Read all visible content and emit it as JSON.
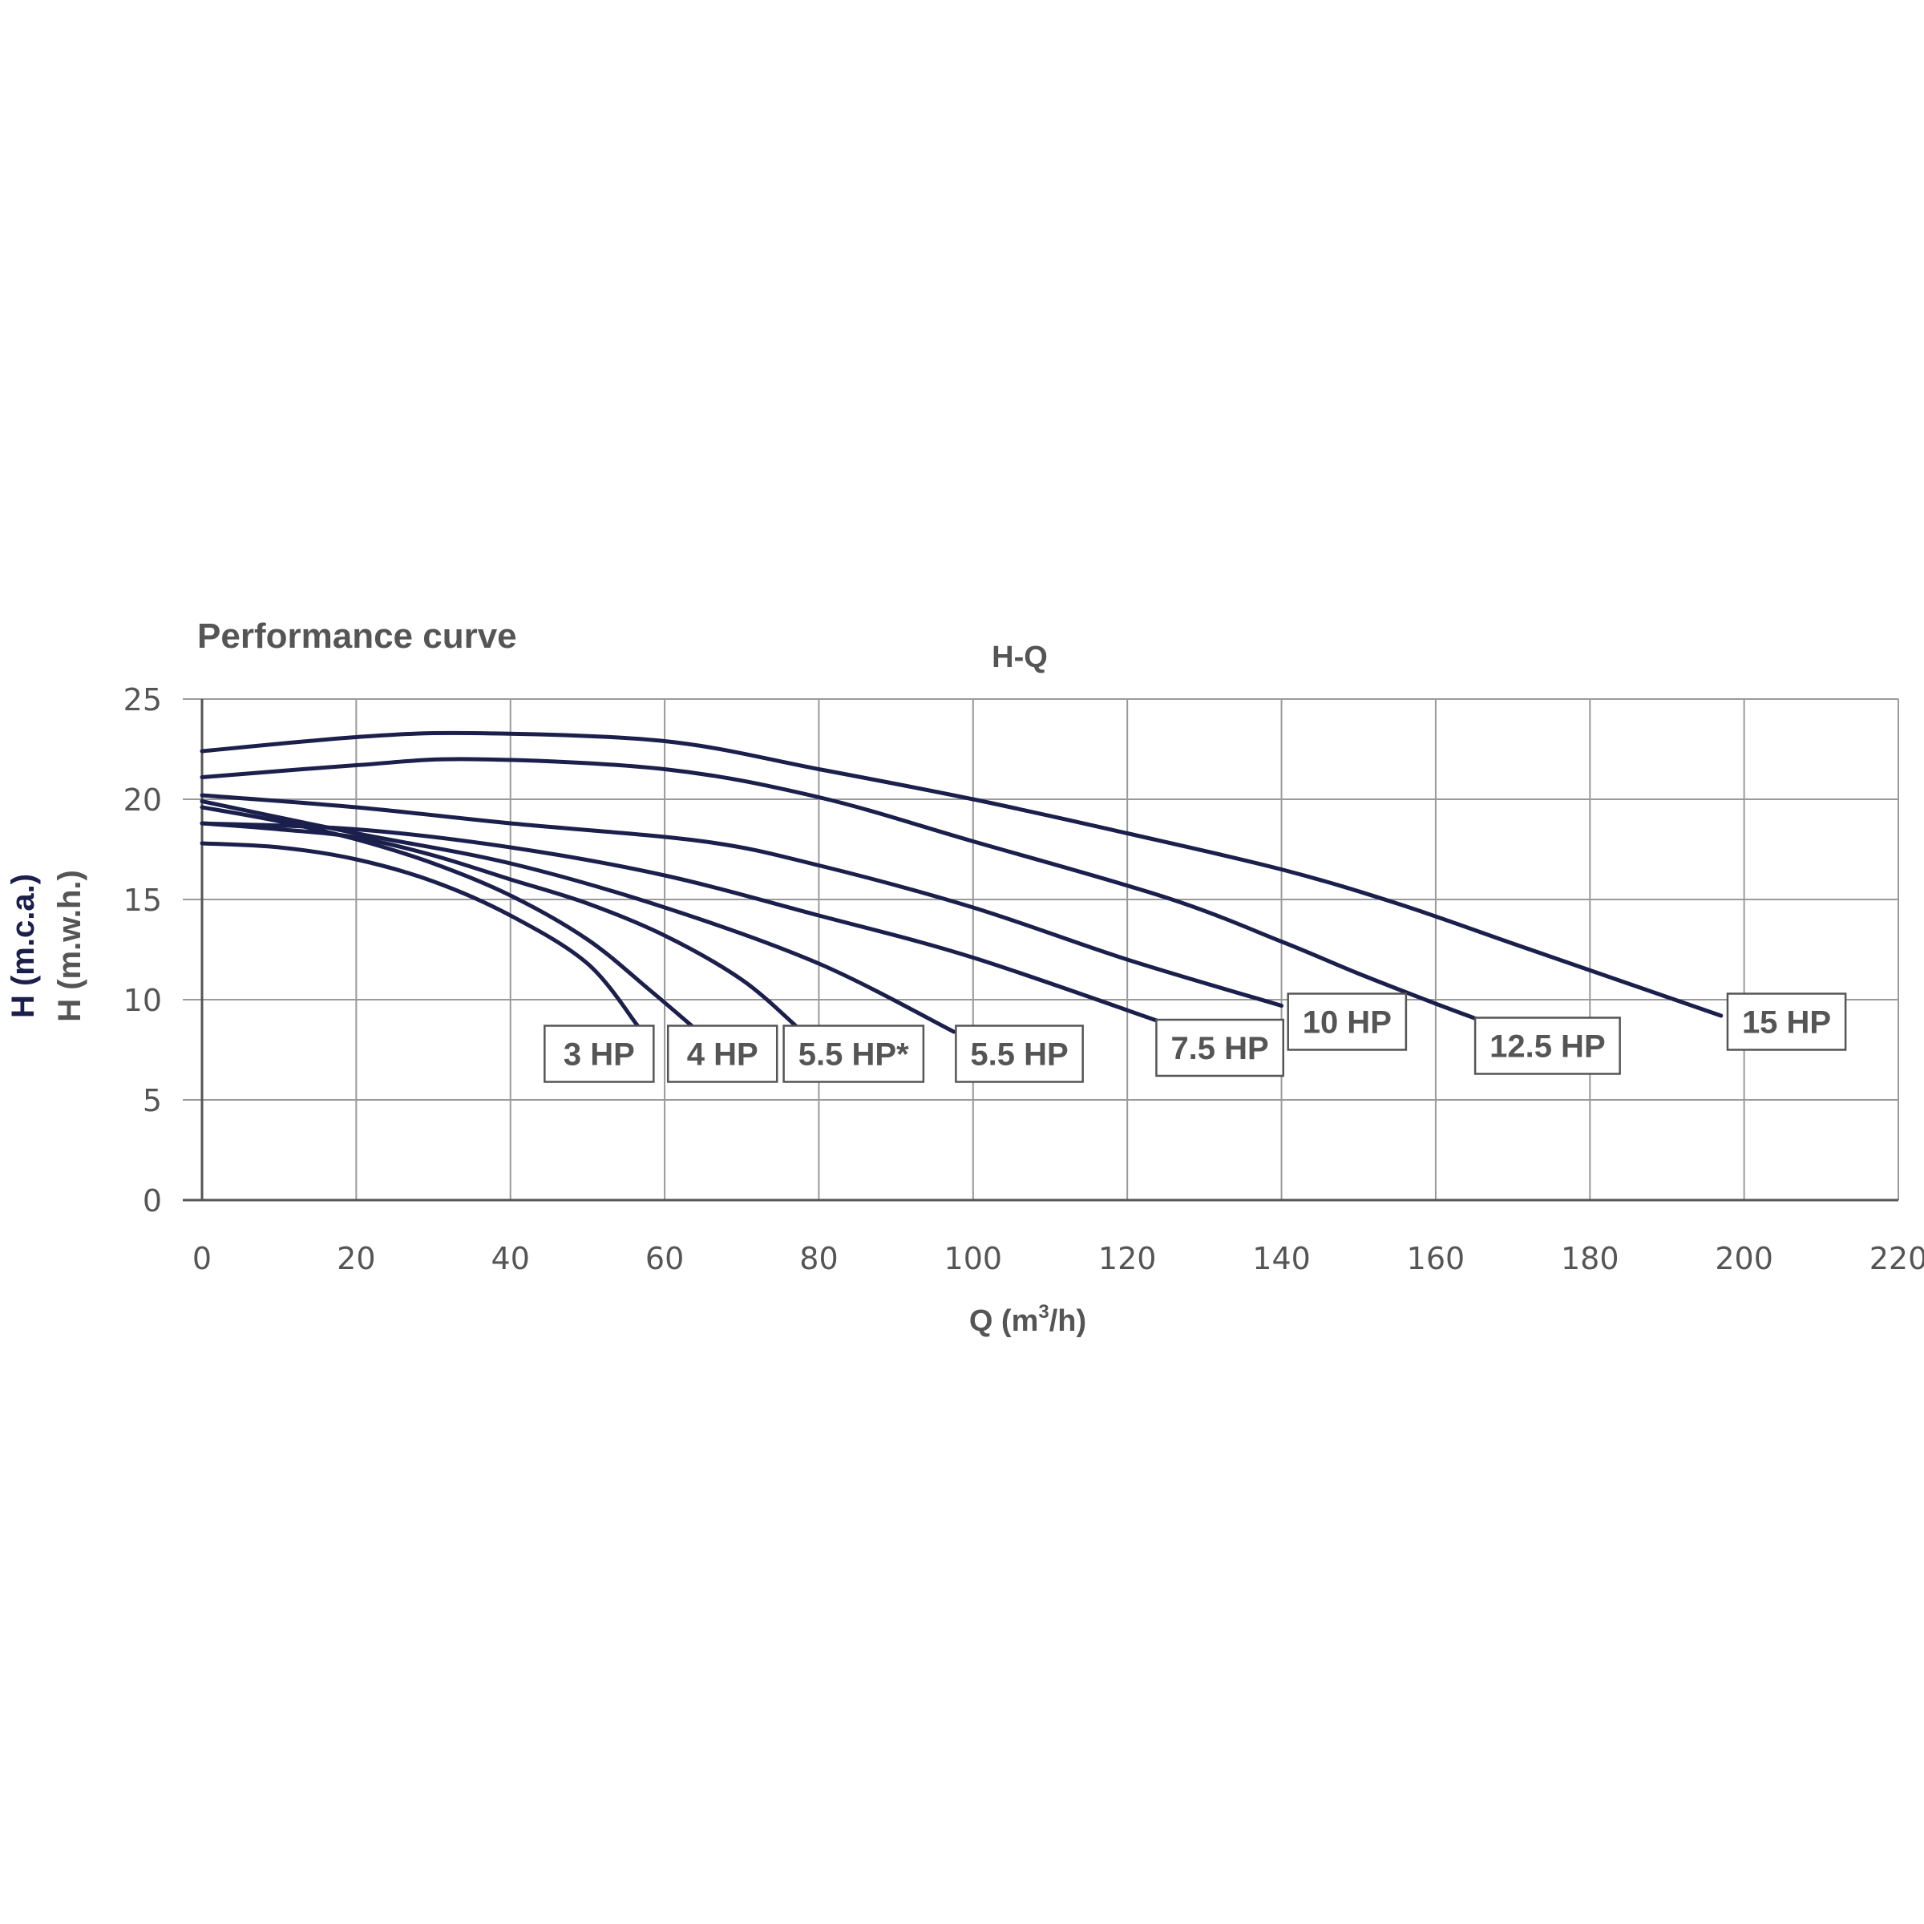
{
  "heading": "Performance curve",
  "chart_data": {
    "type": "line",
    "title": "H-Q",
    "xlabel_main": "Q (m",
    "xlabel_sup": "3",
    "xlabel_end": "/h)",
    "ylabel_primary": "H (m.c.a.)",
    "ylabel_secondary": "H (m.w.h.)",
    "xlim": [
      0,
      220
    ],
    "ylim": [
      0,
      25
    ],
    "xticks": [
      "0",
      "20",
      "40",
      "60",
      "80",
      "100",
      "120",
      "140",
      "160",
      "180",
      "200",
      "220"
    ],
    "yticks": [
      "0",
      "5",
      "10",
      "15",
      "20",
      "25"
    ],
    "grid": true,
    "line_color": "#1b1f4b",
    "series": [
      {
        "name": "3 HP",
        "label_at": [
          51.5,
          7.3
        ],
        "points": [
          [
            0,
            17.8
          ],
          [
            10,
            17.6
          ],
          [
            20,
            17
          ],
          [
            30,
            15.9
          ],
          [
            40,
            14.2
          ],
          [
            50,
            11.8
          ],
          [
            56.5,
            8.7
          ]
        ]
      },
      {
        "name": "4 HP",
        "label_at": [
          67.5,
          7.3
        ],
        "points": [
          [
            0,
            19.6
          ],
          [
            10,
            18.9
          ],
          [
            20,
            18
          ],
          [
            30,
            16.8
          ],
          [
            40,
            15.2
          ],
          [
            50,
            13
          ],
          [
            58,
            10.5
          ],
          [
            63.5,
            8.7
          ]
        ]
      },
      {
        "name": "5.5 HP*",
        "label_at": [
          84.5,
          7.3
        ],
        "points": [
          [
            0,
            18.8
          ],
          [
            10,
            18.5
          ],
          [
            20,
            18.1
          ],
          [
            30,
            17.2
          ],
          [
            40,
            16
          ],
          [
            50,
            14.8
          ],
          [
            60,
            13.2
          ],
          [
            70,
            11
          ],
          [
            77,
            8.7
          ]
        ]
      },
      {
        "name": "5.5 HP",
        "label_at": [
          106,
          7.3
        ],
        "points": [
          [
            0,
            19.9
          ],
          [
            20,
            18.3
          ],
          [
            40,
            16.8
          ],
          [
            60,
            14.6
          ],
          [
            80,
            11.8
          ],
          [
            97.5,
            8.4
          ]
        ]
      },
      {
        "name": "7.5 HP",
        "label_at": [
          132,
          7.6
        ],
        "points": [
          [
            0,
            18.8
          ],
          [
            20,
            18.5
          ],
          [
            40,
            17.6
          ],
          [
            60,
            16.2
          ],
          [
            80,
            14.2
          ],
          [
            100,
            12.1
          ],
          [
            125,
            8.8
          ]
        ]
      },
      {
        "name": "10 HP",
        "label_at": [
          148.5,
          8.9
        ],
        "points": [
          [
            0,
            20.2
          ],
          [
            20,
            19.6
          ],
          [
            40,
            18.8
          ],
          [
            65,
            17.9
          ],
          [
            80,
            16.7
          ],
          [
            100,
            14.6
          ],
          [
            120,
            12
          ],
          [
            140,
            9.7
          ]
        ]
      },
      {
        "name": "12.5 HP",
        "label_at": [
          174.5,
          7.7
        ],
        "points": [
          [
            0,
            21.1
          ],
          [
            20,
            21.7
          ],
          [
            35,
            22
          ],
          [
            60,
            21.5
          ],
          [
            80,
            20.1
          ],
          [
            100,
            17.9
          ],
          [
            125,
            15.1
          ],
          [
            140,
            12.9
          ],
          [
            150,
            11.3
          ],
          [
            160,
            9.8
          ],
          [
            167,
            8.8
          ]
        ]
      },
      {
        "name": "15 HP",
        "label_at": [
          205.5,
          8.9
        ],
        "points": [
          [
            0,
            22.4
          ],
          [
            20,
            23.1
          ],
          [
            35,
            23.3
          ],
          [
            60,
            22.9
          ],
          [
            80,
            21.5
          ],
          [
            100,
            20
          ],
          [
            120,
            18.3
          ],
          [
            140,
            16.5
          ],
          [
            155,
            14.8
          ],
          [
            170,
            12.8
          ],
          [
            185,
            10.8
          ],
          [
            197,
            9.2
          ]
        ]
      }
    ]
  }
}
